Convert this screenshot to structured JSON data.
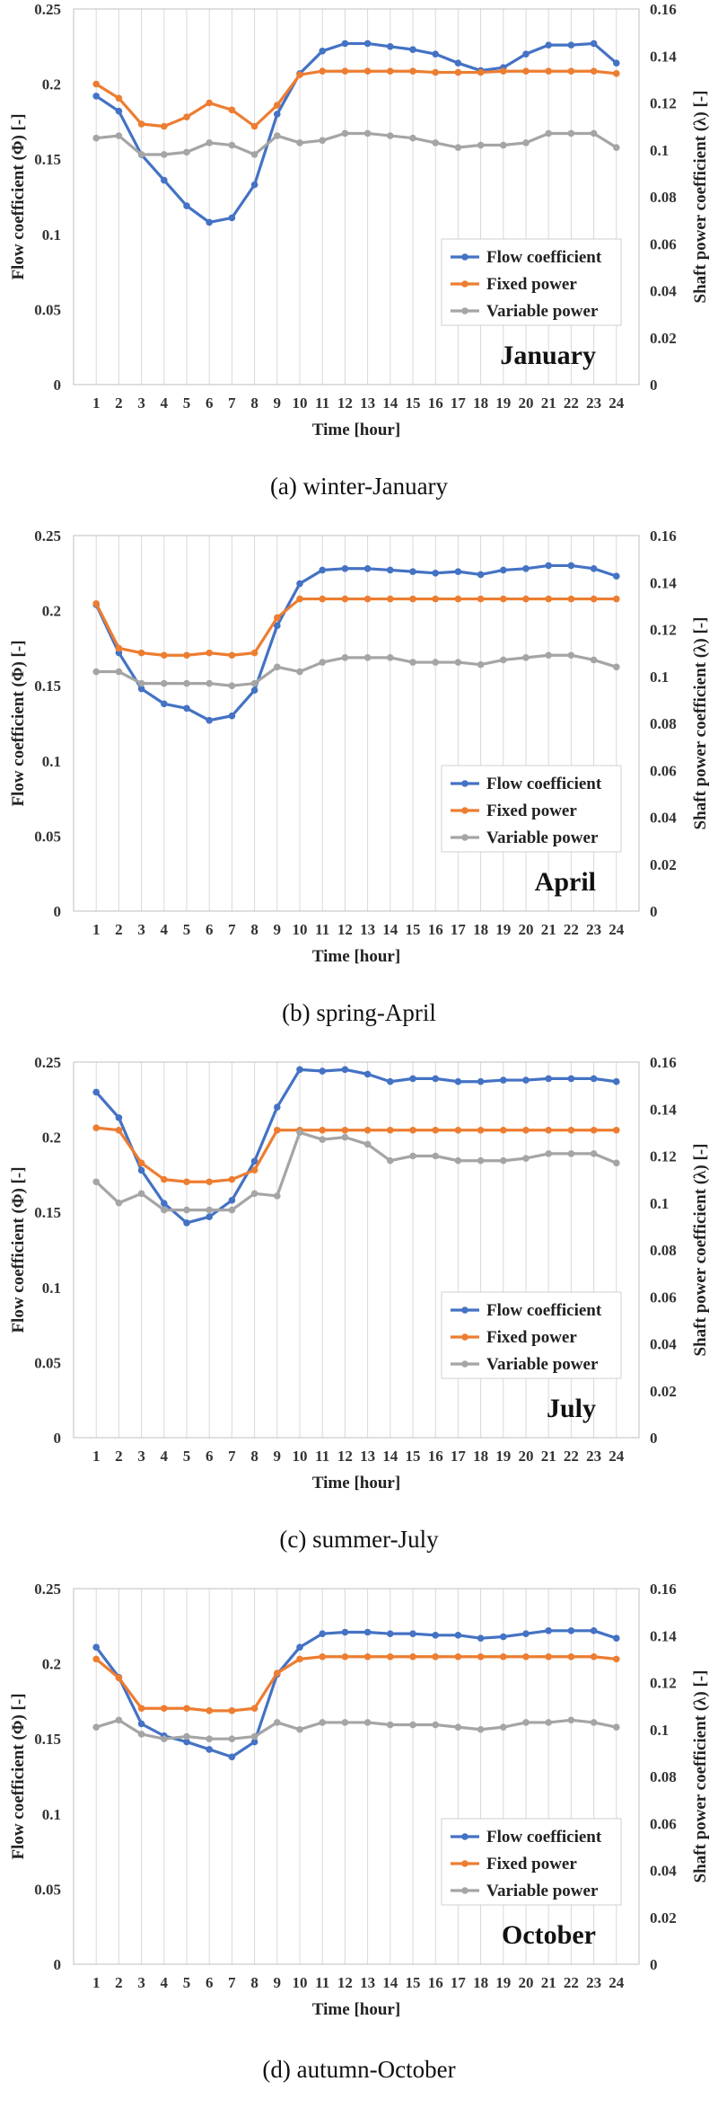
{
  "colors": {
    "flow": "#4472C4",
    "fixed": "#ED7D31",
    "variable": "#A5A5A5",
    "grid": "#D9D9D9",
    "axis": "#BFBFBF"
  },
  "chart_data": [
    {
      "type": "line",
      "annotation": "January",
      "caption": "(a)  winter-January",
      "xlabel": "Time [hour]",
      "ylabel": "Flow coefficient (Φ) [-]",
      "y2label": "Shaft power coefficient (λ) [-]",
      "x": [
        1,
        2,
        3,
        4,
        5,
        6,
        7,
        8,
        9,
        10,
        11,
        12,
        13,
        14,
        15,
        16,
        17,
        18,
        19,
        20,
        21,
        22,
        23,
        24
      ],
      "ylim": [
        0,
        0.25
      ],
      "y2lim": [
        0,
        0.16
      ],
      "yticks": [
        "0",
        "0.05",
        "0.1",
        "0.15",
        "0.2",
        "0.25"
      ],
      "y2ticks": [
        "0",
        "0.02",
        "0.04",
        "0.06",
        "0.08",
        "0.1",
        "0.12",
        "0.14",
        "0.16"
      ],
      "legend_position": "bottom-right",
      "grid": true,
      "series": [
        {
          "name": "Flow coefficient",
          "axis": "left",
          "color": "#4472C4",
          "values": [
            0.192,
            0.182,
            0.153,
            0.136,
            0.119,
            0.108,
            0.111,
            0.133,
            0.18,
            0.207,
            0.222,
            0.227,
            0.227,
            0.225,
            0.223,
            0.22,
            0.214,
            0.209,
            0.211,
            0.22,
            0.226,
            0.226,
            0.227,
            0.214
          ]
        },
        {
          "name": "Fixed power",
          "axis": "right",
          "color": "#ED7D31",
          "values": [
            0.128,
            0.122,
            0.111,
            0.11,
            0.114,
            0.12,
            0.117,
            0.11,
            0.119,
            0.132,
            0.1335,
            0.1335,
            0.1335,
            0.1335,
            0.1335,
            0.133,
            0.133,
            0.133,
            0.1335,
            0.1335,
            0.1335,
            0.1335,
            0.1335,
            0.1325
          ]
        },
        {
          "name": "Variable power",
          "axis": "right",
          "color": "#A5A5A5",
          "values": [
            0.105,
            0.106,
            0.098,
            0.098,
            0.099,
            0.103,
            0.102,
            0.098,
            0.106,
            0.103,
            0.104,
            0.107,
            0.107,
            0.106,
            0.105,
            0.103,
            0.101,
            0.102,
            0.102,
            0.103,
            0.107,
            0.107,
            0.107,
            0.101
          ]
        }
      ]
    },
    {
      "type": "line",
      "annotation": "April",
      "caption": "(b)  spring-April",
      "xlabel": "Time [hour]",
      "ylabel": "Flow coefficient (Φ) [-]",
      "y2label": "Shaft power coefficient (λ) [-]",
      "x": [
        1,
        2,
        3,
        4,
        5,
        6,
        7,
        8,
        9,
        10,
        11,
        12,
        13,
        14,
        15,
        16,
        17,
        18,
        19,
        20,
        21,
        22,
        23,
        24
      ],
      "ylim": [
        0,
        0.25
      ],
      "y2lim": [
        0,
        0.16
      ],
      "yticks": [
        "0",
        "0.05",
        "0.1",
        "0.15",
        "0.2",
        "0.25"
      ],
      "y2ticks": [
        "0",
        "0.02",
        "0.04",
        "0.06",
        "0.08",
        "0.1",
        "0.12",
        "0.14",
        "0.16"
      ],
      "legend_position": "bottom-right",
      "grid": true,
      "series": [
        {
          "name": "Flow coefficient",
          "axis": "left",
          "color": "#4472C4",
          "values": [
            0.204,
            0.172,
            0.148,
            0.138,
            0.135,
            0.127,
            0.13,
            0.147,
            0.19,
            0.218,
            0.227,
            0.228,
            0.228,
            0.227,
            0.226,
            0.225,
            0.226,
            0.224,
            0.227,
            0.228,
            0.23,
            0.23,
            0.228,
            0.223
          ]
        },
        {
          "name": "Fixed power",
          "axis": "right",
          "color": "#ED7D31",
          "values": [
            0.131,
            0.112,
            0.11,
            0.109,
            0.109,
            0.11,
            0.109,
            0.11,
            0.125,
            0.133,
            0.133,
            0.133,
            0.133,
            0.133,
            0.133,
            0.133,
            0.133,
            0.133,
            0.133,
            0.133,
            0.133,
            0.133,
            0.133,
            0.133
          ]
        },
        {
          "name": "Variable power",
          "axis": "right",
          "color": "#A5A5A5",
          "values": [
            0.102,
            0.102,
            0.097,
            0.097,
            0.097,
            0.097,
            0.096,
            0.097,
            0.104,
            0.102,
            0.106,
            0.108,
            0.108,
            0.108,
            0.106,
            0.106,
            0.106,
            0.105,
            0.107,
            0.108,
            0.109,
            0.109,
            0.107,
            0.104
          ]
        }
      ]
    },
    {
      "type": "line",
      "annotation": "July",
      "caption": "(c)  summer-July",
      "xlabel": "Time [hour]",
      "ylabel": "Flow coefficient (Φ) [-]",
      "y2label": "Shaft power coefficient (λ) [-]",
      "x": [
        1,
        2,
        3,
        4,
        5,
        6,
        7,
        8,
        9,
        10,
        11,
        12,
        13,
        14,
        15,
        16,
        17,
        18,
        19,
        20,
        21,
        22,
        23,
        24
      ],
      "ylim": [
        0,
        0.25
      ],
      "y2lim": [
        0,
        0.16
      ],
      "yticks": [
        "0",
        "0.05",
        "0.1",
        "0.15",
        "0.2",
        "0.25"
      ],
      "y2ticks": [
        "0",
        "0.02",
        "0.04",
        "0.06",
        "0.08",
        "0.1",
        "0.12",
        "0.14",
        "0.16"
      ],
      "legend_position": "bottom-right",
      "grid": true,
      "series": [
        {
          "name": "Flow coefficient",
          "axis": "left",
          "color": "#4472C4",
          "values": [
            0.23,
            0.213,
            0.178,
            0.156,
            0.143,
            0.147,
            0.158,
            0.184,
            0.22,
            0.245,
            0.244,
            0.245,
            0.242,
            0.237,
            0.239,
            0.239,
            0.237,
            0.237,
            0.238,
            0.238,
            0.239,
            0.239,
            0.239,
            0.237
          ]
        },
        {
          "name": "Fixed power",
          "axis": "right",
          "color": "#ED7D31",
          "values": [
            0.132,
            0.131,
            0.117,
            0.11,
            0.109,
            0.109,
            0.11,
            0.114,
            0.131,
            0.131,
            0.131,
            0.131,
            0.131,
            0.131,
            0.131,
            0.131,
            0.131,
            0.131,
            0.131,
            0.131,
            0.131,
            0.131,
            0.131,
            0.131
          ]
        },
        {
          "name": "Variable power",
          "axis": "right",
          "color": "#A5A5A5",
          "values": [
            0.109,
            0.1,
            0.104,
            0.097,
            0.097,
            0.097,
            0.097,
            0.104,
            0.103,
            0.13,
            0.127,
            0.128,
            0.125,
            0.118,
            0.12,
            0.12,
            0.118,
            0.118,
            0.118,
            0.119,
            0.121,
            0.121,
            0.121,
            0.117
          ]
        }
      ]
    },
    {
      "type": "line",
      "annotation": "October",
      "caption": "(d)  autumn-October",
      "xlabel": "Time [hour]",
      "ylabel": "Flow coefficient (Φ) [-]",
      "y2label": "Shaft power coefficient (λ) [-]",
      "x": [
        1,
        2,
        3,
        4,
        5,
        6,
        7,
        8,
        9,
        10,
        11,
        12,
        13,
        14,
        15,
        16,
        17,
        18,
        19,
        20,
        21,
        22,
        23,
        24
      ],
      "ylim": [
        0,
        0.25
      ],
      "y2lim": [
        0,
        0.16
      ],
      "yticks": [
        "0",
        "0.05",
        "0.1",
        "0.15",
        "0.2",
        "0.25"
      ],
      "y2ticks": [
        "0",
        "0.02",
        "0.04",
        "0.06",
        "0.08",
        "0.1",
        "0.12",
        "0.14",
        "0.16"
      ],
      "legend_position": "bottom-right",
      "grid": true,
      "series": [
        {
          "name": "Flow coefficient",
          "axis": "left",
          "color": "#4472C4",
          "values": [
            0.211,
            0.191,
            0.16,
            0.152,
            0.148,
            0.143,
            0.138,
            0.148,
            0.193,
            0.211,
            0.22,
            0.221,
            0.221,
            0.22,
            0.22,
            0.219,
            0.219,
            0.217,
            0.218,
            0.22,
            0.222,
            0.222,
            0.222,
            0.217
          ]
        },
        {
          "name": "Fixed power",
          "axis": "right",
          "color": "#ED7D31",
          "values": [
            0.13,
            0.122,
            0.109,
            0.109,
            0.109,
            0.108,
            0.108,
            0.109,
            0.124,
            0.13,
            0.131,
            0.131,
            0.131,
            0.131,
            0.131,
            0.131,
            0.131,
            0.131,
            0.131,
            0.131,
            0.131,
            0.131,
            0.131,
            0.13
          ]
        },
        {
          "name": "Variable power",
          "axis": "right",
          "color": "#A5A5A5",
          "values": [
            0.101,
            0.104,
            0.098,
            0.096,
            0.097,
            0.096,
            0.096,
            0.097,
            0.103,
            0.1,
            0.103,
            0.103,
            0.103,
            0.102,
            0.102,
            0.102,
            0.101,
            0.1,
            0.101,
            0.103,
            0.103,
            0.104,
            0.103,
            0.101
          ]
        }
      ]
    }
  ]
}
